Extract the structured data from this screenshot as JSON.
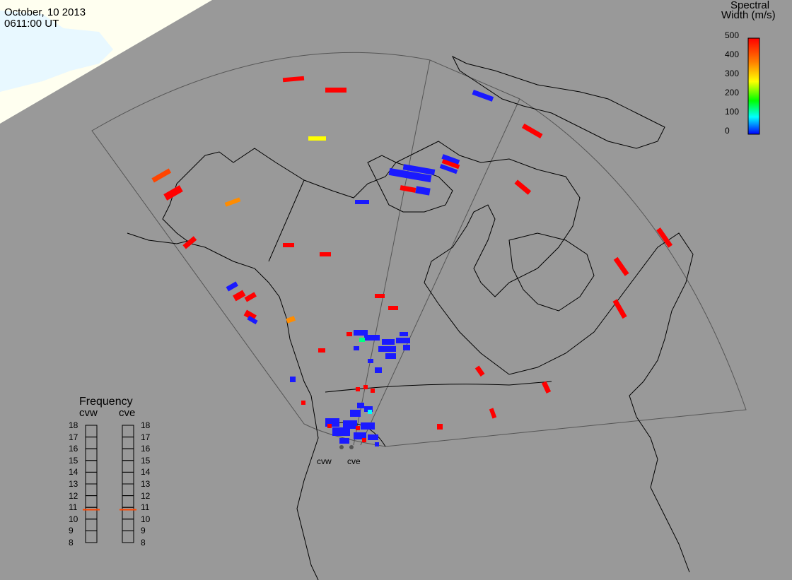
{
  "header": {
    "date": "October, 10 2013",
    "time": "0611:00 UT"
  },
  "colorbar": {
    "title_line1": "Spectral",
    "title_line2": "Width (m/s)",
    "ticks": [
      "500",
      "400",
      "300",
      "200",
      "100",
      "0"
    ],
    "colors": [
      "#ff0000",
      "#ff8000",
      "#ffff00",
      "#00ff00",
      "#00ffff",
      "#0000ff"
    ]
  },
  "frequency": {
    "title": "Frequency",
    "radars": [
      "cvw",
      "cve"
    ],
    "ticks": [
      "18",
      "17",
      "16",
      "15",
      "14",
      "13",
      "12",
      "11",
      "10",
      "9",
      "8"
    ],
    "current_mhz": [
      10.8,
      10.8
    ],
    "marker_color": "#ff4500"
  },
  "radars": {
    "labels": [
      "cvw",
      "cve"
    ]
  },
  "colors": {
    "background": "#999999",
    "sun_lit": "#fffff0",
    "ice": "#e8f8ff",
    "red": "#ff0000",
    "blue": "#1a1aff"
  }
}
